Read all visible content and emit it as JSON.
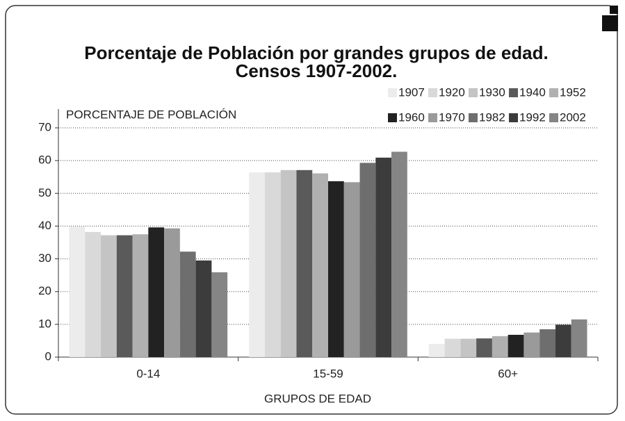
{
  "chart_data": {
    "type": "bar",
    "title": "Porcentaje de Población por grandes grupos de edad.",
    "subtitle": "Censos 1907-2002.",
    "y_label": "PORCENTAJE DE POBLACIÓN",
    "x_label": "GRUPOS DE EDAD",
    "categories": [
      "0-14",
      "15-59",
      "60+"
    ],
    "series": [
      {
        "name": "1907",
        "color": "#ececec",
        "values": [
          39.9,
          56.4,
          4.0
        ]
      },
      {
        "name": "1920",
        "color": "#d9d9d9",
        "values": [
          38.2,
          56.4,
          5.6
        ]
      },
      {
        "name": "1930",
        "color": "#c4c4c4",
        "values": [
          37.2,
          57.1,
          5.6
        ]
      },
      {
        "name": "1940",
        "color": "#5a5a5a",
        "values": [
          37.2,
          57.1,
          5.7
        ]
      },
      {
        "name": "1952",
        "color": "#b0b0b0",
        "values": [
          37.5,
          56.1,
          6.4
        ]
      },
      {
        "name": "1960",
        "color": "#222222",
        "values": [
          39.6,
          53.7,
          6.8
        ]
      },
      {
        "name": "1970",
        "color": "#9a9a9a",
        "values": [
          39.3,
          53.4,
          7.5
        ]
      },
      {
        "name": "1982",
        "color": "#6e6e6e",
        "values": [
          32.2,
          59.3,
          8.5
        ]
      },
      {
        "name": "1992",
        "color": "#3c3c3c",
        "values": [
          29.5,
          60.9,
          9.9
        ]
      },
      {
        "name": "2002",
        "color": "#858585",
        "values": [
          25.9,
          62.7,
          11.5
        ]
      }
    ],
    "ylim": [
      0,
      70
    ],
    "yticks": [
      0,
      10,
      20,
      30,
      40,
      50,
      60,
      70
    ],
    "grid": true
  }
}
